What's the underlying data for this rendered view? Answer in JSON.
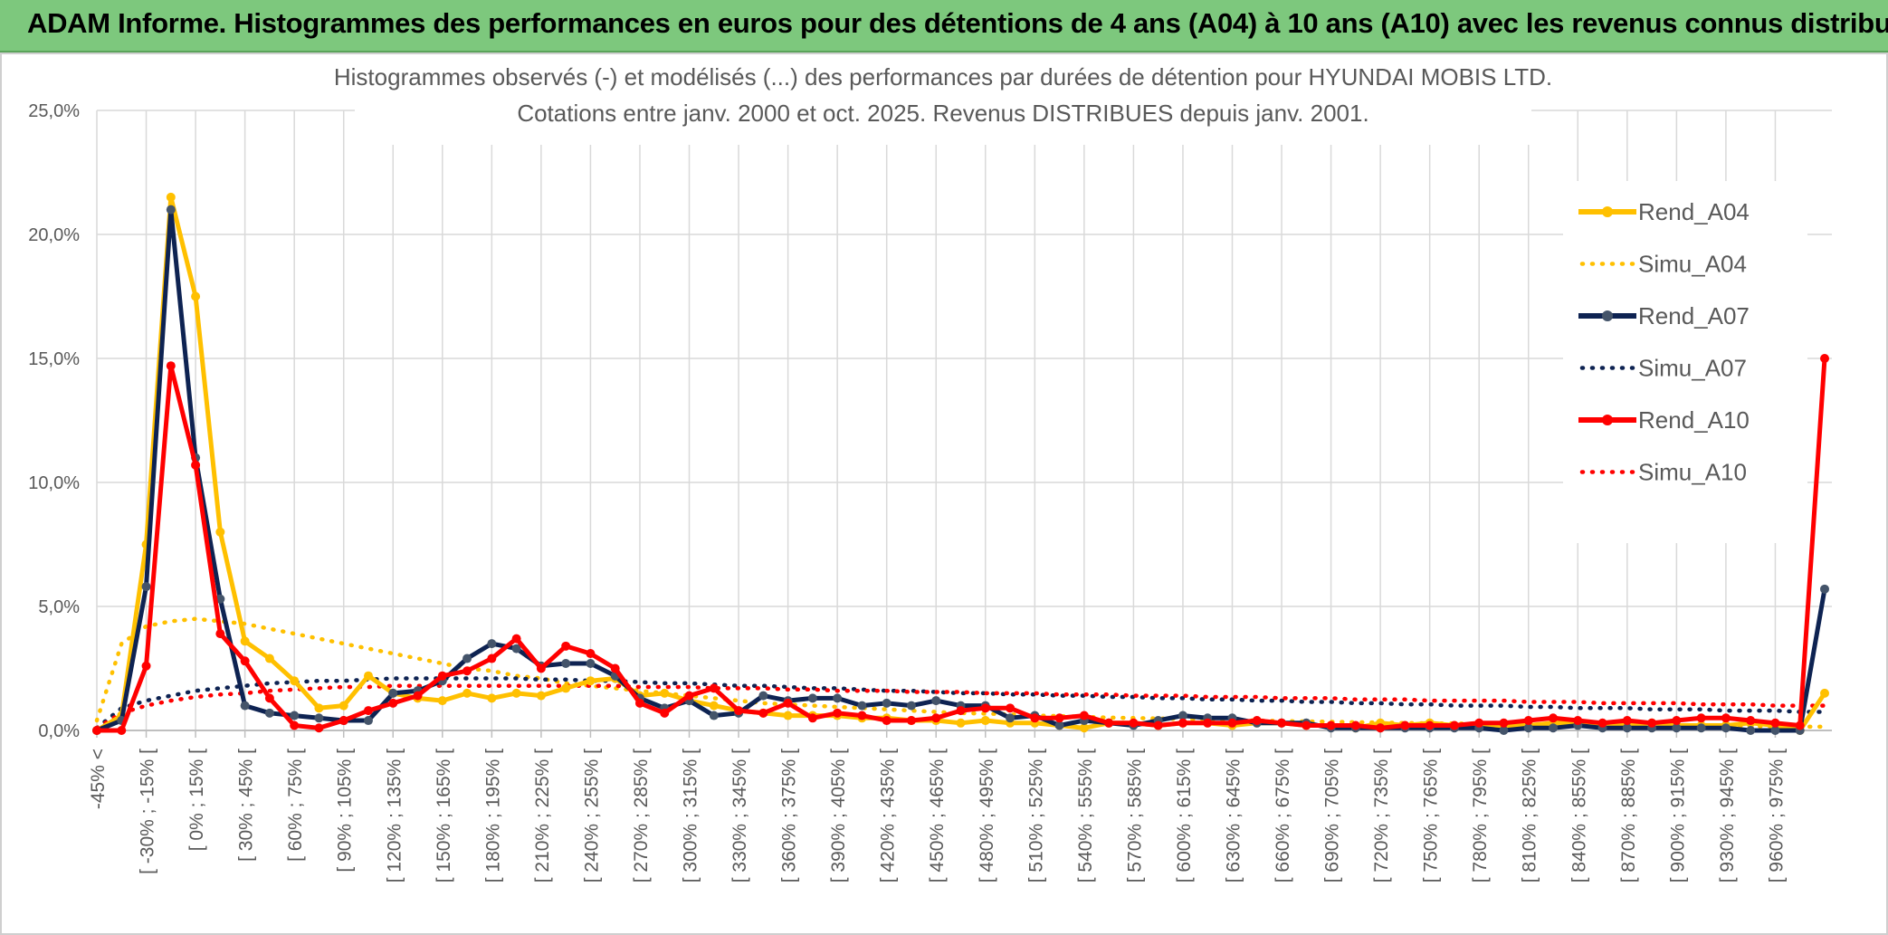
{
  "header": {
    "title": "ADAM Informe. Histogrammes des performances en euros pour des détentions de 4 ans (A04) à 10 ans (A10) avec les revenus connus distribués"
  },
  "chart_data": {
    "type": "line",
    "title_lines": [
      "Histogrammes observés (-) et modélisés (...) des performances par durées de détention pour HYUNDAI MOBIS LTD.",
      "Cotations entre janv. 2000 et oct. 2025. Revenus DISTRIBUES depuis janv. 2001."
    ],
    "xlabel": "",
    "ylabel": "",
    "ylim": [
      0,
      25
    ],
    "yticks": [
      "0,0%",
      "5,0%",
      "10,0%",
      "15,0%",
      "20,0%",
      "25,0%"
    ],
    "x_tick_labels": [
      "-45% <",
      "[ -30% ; -15% [",
      "[ 0% ; 15% [",
      "[ 30% ; 45% [",
      "[ 60% ; 75% [",
      "[ 90% ; 105% [",
      "[ 120% ; 135% [",
      "[ 150% ; 165% [",
      "[ 180% ; 195% [",
      "[ 210% ; 225% [",
      "[ 240% ; 255% [",
      "[ 270% ; 285% [",
      "[ 300% ; 315% [",
      "[ 330% ; 345% [",
      "[ 360% ; 375% [",
      "[ 390% ; 405% [",
      "[ 420% ; 435% [",
      "[ 450% ; 465% [",
      "[ 480% ; 495% [",
      "[ 510% ; 525% [",
      "[ 540% ; 555% [",
      "[ 570% ; 585% [",
      "[ 600% ; 615% [",
      "[ 630% ; 645% [",
      "[ 660% ; 675% [",
      "[ 690% ; 705% [",
      "[ 720% ; 735% [",
      "[ 750% ; 765% [",
      "[ 780% ; 795% [",
      "[ 810% ; 825% [",
      "[ 840% ; 855% [",
      "[ 870% ; 885% [",
      "[ 900% ; 915% [",
      "[ 930% ; 945% [",
      "[ 960% ; 975% ["
    ],
    "category_count": 71,
    "legend_position": "right",
    "series": [
      {
        "name": "Rend_A04",
        "style": "solid",
        "color": "#ffc000",
        "values": [
          0.0,
          0.6,
          7.5,
          21.5,
          17.5,
          8.0,
          3.6,
          2.9,
          2.0,
          0.9,
          1.0,
          2.2,
          1.5,
          1.3,
          1.2,
          1.5,
          1.3,
          1.5,
          1.4,
          1.7,
          2.0,
          2.1,
          1.4,
          1.5,
          1.2,
          1.0,
          0.8,
          0.7,
          0.6,
          0.6,
          0.6,
          0.5,
          0.5,
          0.4,
          0.4,
          0.3,
          0.4,
          0.3,
          0.3,
          0.2,
          0.1,
          0.3,
          0.3,
          0.2,
          0.3,
          0.3,
          0.2,
          0.3,
          0.3,
          0.2,
          0.2,
          0.1,
          0.3,
          0.2,
          0.3,
          0.2,
          0.2,
          0.2,
          0.2,
          0.3,
          0.3,
          0.2,
          0.2,
          0.3,
          0.2,
          0.2,
          0.2,
          0.3,
          0.2,
          0.0,
          1.5
        ]
      },
      {
        "name": "Simu_A04",
        "style": "dotted",
        "color": "#ffc000",
        "values": [
          0.4,
          3.5,
          4.2,
          4.4,
          4.5,
          4.4,
          4.3,
          4.1,
          3.9,
          3.7,
          3.5,
          3.3,
          3.1,
          2.9,
          2.7,
          2.5,
          2.4,
          2.2,
          2.1,
          1.9,
          1.8,
          1.7,
          1.6,
          1.5,
          1.4,
          1.3,
          1.2,
          1.1,
          1.05,
          1.0,
          0.95,
          0.9,
          0.85,
          0.8,
          0.75,
          0.7,
          0.68,
          0.65,
          0.6,
          0.58,
          0.55,
          0.52,
          0.5,
          0.48,
          0.46,
          0.44,
          0.42,
          0.4,
          0.38,
          0.36,
          0.35,
          0.33,
          0.32,
          0.3,
          0.29,
          0.28,
          0.27,
          0.26,
          0.25,
          0.24,
          0.23,
          0.22,
          0.21,
          0.2,
          0.19,
          0.18,
          0.17,
          0.17,
          0.16,
          0.15,
          0.15
        ]
      },
      {
        "name": "Rend_A07",
        "style": "solid",
        "color": "#0e2352",
        "values": [
          0.0,
          0.4,
          5.8,
          21.0,
          11.0,
          5.3,
          1.0,
          0.7,
          0.6,
          0.5,
          0.4,
          0.4,
          1.5,
          1.6,
          2.0,
          2.9,
          3.5,
          3.3,
          2.6,
          2.7,
          2.7,
          2.2,
          1.3,
          0.9,
          1.2,
          0.6,
          0.7,
          1.4,
          1.2,
          1.3,
          1.3,
          1.0,
          1.1,
          1.0,
          1.2,
          1.0,
          1.0,
          0.5,
          0.6,
          0.2,
          0.4,
          0.3,
          0.2,
          0.4,
          0.6,
          0.5,
          0.5,
          0.3,
          0.3,
          0.3,
          0.1,
          0.1,
          0.1,
          0.1,
          0.1,
          0.1,
          0.1,
          0.0,
          0.1,
          0.1,
          0.2,
          0.1,
          0.1,
          0.1,
          0.1,
          0.1,
          0.1,
          0.0,
          0.0,
          0.0,
          5.7
        ]
      },
      {
        "name": "Simu_A07",
        "style": "dotted",
        "color": "#0e2352",
        "values": [
          0.1,
          0.9,
          1.2,
          1.4,
          1.6,
          1.7,
          1.8,
          1.9,
          1.95,
          2.0,
          2.0,
          2.05,
          2.1,
          2.1,
          2.1,
          2.1,
          2.1,
          2.1,
          2.05,
          2.05,
          2.0,
          2.0,
          1.95,
          1.9,
          1.9,
          1.85,
          1.8,
          1.8,
          1.75,
          1.7,
          1.7,
          1.65,
          1.6,
          1.6,
          1.55,
          1.5,
          1.5,
          1.45,
          1.45,
          1.4,
          1.4,
          1.35,
          1.35,
          1.3,
          1.3,
          1.25,
          1.25,
          1.2,
          1.2,
          1.15,
          1.15,
          1.1,
          1.1,
          1.05,
          1.05,
          1.0,
          1.0,
          1.0,
          0.95,
          0.95,
          0.9,
          0.9,
          0.9,
          0.85,
          0.85,
          0.85,
          0.8,
          0.8,
          0.8,
          0.75,
          0.75
        ]
      },
      {
        "name": "Rend_A10",
        "style": "solid",
        "color": "#ff0000",
        "values": [
          0.0,
          0.0,
          2.6,
          14.7,
          10.7,
          3.9,
          2.8,
          1.3,
          0.2,
          0.1,
          0.4,
          0.8,
          1.1,
          1.4,
          2.2,
          2.4,
          2.9,
          3.7,
          2.5,
          3.4,
          3.1,
          2.5,
          1.1,
          0.7,
          1.4,
          1.7,
          0.8,
          0.7,
          1.1,
          0.5,
          0.7,
          0.6,
          0.4,
          0.4,
          0.5,
          0.8,
          0.9,
          0.9,
          0.5,
          0.5,
          0.6,
          0.3,
          0.3,
          0.2,
          0.3,
          0.3,
          0.3,
          0.4,
          0.3,
          0.2,
          0.2,
          0.2,
          0.1,
          0.2,
          0.2,
          0.2,
          0.3,
          0.3,
          0.4,
          0.5,
          0.4,
          0.3,
          0.4,
          0.3,
          0.4,
          0.5,
          0.5,
          0.4,
          0.3,
          0.2,
          15.0
        ]
      },
      {
        "name": "Simu_A10",
        "style": "dotted",
        "color": "#ff0000",
        "values": [
          0.1,
          0.7,
          1.0,
          1.2,
          1.35,
          1.45,
          1.5,
          1.6,
          1.65,
          1.7,
          1.75,
          1.75,
          1.8,
          1.8,
          1.8,
          1.8,
          1.8,
          1.8,
          1.8,
          1.8,
          1.8,
          1.8,
          1.75,
          1.75,
          1.75,
          1.7,
          1.7,
          1.7,
          1.65,
          1.65,
          1.6,
          1.6,
          1.6,
          1.55,
          1.55,
          1.55,
          1.5,
          1.5,
          1.5,
          1.45,
          1.45,
          1.45,
          1.4,
          1.4,
          1.4,
          1.35,
          1.35,
          1.35,
          1.3,
          1.3,
          1.3,
          1.25,
          1.25,
          1.25,
          1.2,
          1.2,
          1.2,
          1.2,
          1.15,
          1.15,
          1.15,
          1.1,
          1.1,
          1.1,
          1.1,
          1.05,
          1.05,
          1.05,
          1.0,
          1.0,
          1.0
        ]
      }
    ]
  }
}
